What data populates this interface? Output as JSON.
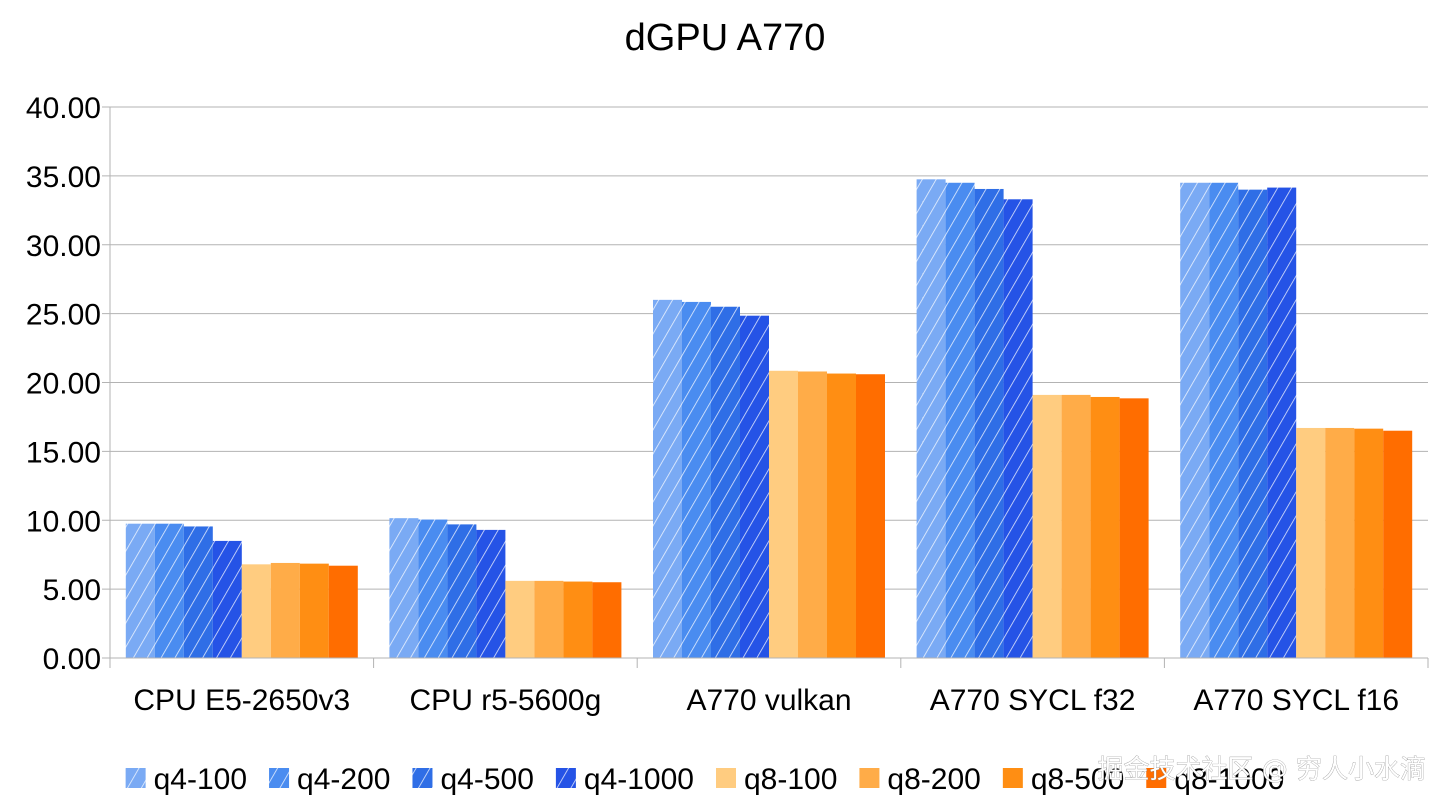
{
  "chart_data": {
    "type": "bar",
    "title": "dGPU A770",
    "xlabel": "",
    "ylabel": "",
    "ylim": [
      0,
      40
    ],
    "y_ticks": [
      "0.00",
      "5.00",
      "10.00",
      "15.00",
      "20.00",
      "25.00",
      "30.00",
      "35.00",
      "40.00"
    ],
    "grid": true,
    "legend_position": "bottom",
    "categories": [
      "CPU E5-2650v3",
      "CPU r5-5600g",
      "A770 vulkan",
      "A770 SYCL f32",
      "A770 SYCL f16"
    ],
    "series": [
      {
        "name": "q4-100",
        "color": "#7aaaf4",
        "hatched": true,
        "values": [
          9.75,
          10.15,
          26.0,
          34.75,
          34.5
        ]
      },
      {
        "name": "q4-200",
        "color": "#4a8cf0",
        "hatched": true,
        "values": [
          9.75,
          10.05,
          25.85,
          34.5,
          34.5
        ]
      },
      {
        "name": "q4-500",
        "color": "#2f6ee6",
        "hatched": true,
        "values": [
          9.55,
          9.7,
          25.5,
          34.05,
          34.0
        ]
      },
      {
        "name": "q4-1000",
        "color": "#2553e6",
        "hatched": true,
        "values": [
          8.5,
          9.3,
          24.85,
          33.3,
          34.15
        ]
      },
      {
        "name": "q8-100",
        "color": "#ffcc80",
        "hatched": false,
        "values": [
          6.8,
          5.6,
          20.85,
          19.1,
          16.7
        ]
      },
      {
        "name": "q8-200",
        "color": "#ffac48",
        "hatched": false,
        "values": [
          6.9,
          5.6,
          20.8,
          19.1,
          16.7
        ]
      },
      {
        "name": "q8-500",
        "color": "#ff8e13",
        "hatched": false,
        "values": [
          6.85,
          5.55,
          20.65,
          18.95,
          16.65
        ]
      },
      {
        "name": "q8-1000",
        "color": "#ff6d00",
        "hatched": false,
        "values": [
          6.7,
          5.5,
          20.6,
          18.85,
          16.5
        ]
      }
    ]
  },
  "watermark": "掘金技术社区 @ 穷人小水滴"
}
